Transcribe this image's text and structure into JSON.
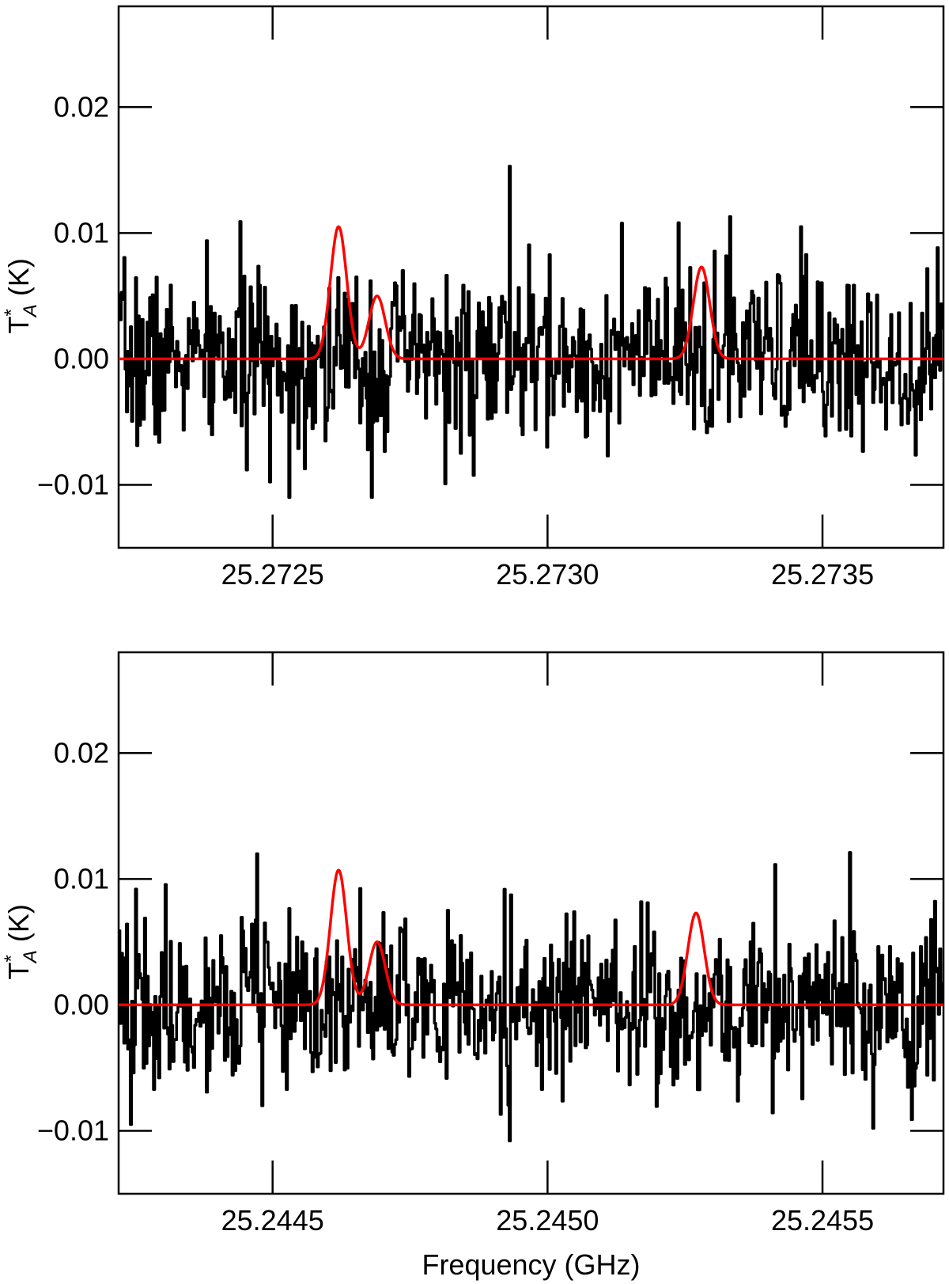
{
  "chart_data": [
    {
      "type": "line",
      "xlim": [
        25.27222,
        25.27372
      ],
      "ylim": [
        -0.015,
        0.028
      ],
      "x_ticks": [
        25.2725,
        25.273,
        25.2735
      ],
      "x_tick_labels": [
        "25.2725",
        "25.2730",
        "25.2735"
      ],
      "y_ticks": [
        -0.01,
        0.0,
        0.01,
        0.02
      ],
      "y_tick_labels": [
        "−0.01",
        "0.00",
        "0.01",
        "0.02"
      ],
      "ylabel": "T*A (K)",
      "xlabel": "",
      "series": [
        {
          "role": "observed spectrum",
          "color": "#000000",
          "noise_rms": 0.0035,
          "seed": 7,
          "spikes": [
            [
              25.27293,
              0.0153
            ],
            [
              25.27284,
              -0.0075
            ],
            [
              25.27253,
              -0.011
            ],
            [
              25.27268,
              -0.011
            ],
            [
              25.27333,
              0.0113
            ],
            [
              25.27346,
              0.0105
            ]
          ]
        },
        {
          "role": "model fit",
          "color": "#ff0000",
          "components": [
            {
              "center": 25.27262,
              "amplitude": 0.0105,
              "fwhm": 3.5e-05
            },
            {
              "center": 25.27269,
              "amplitude": 0.005,
              "fwhm": 3.5e-05
            },
            {
              "center": 25.27328,
              "amplitude": 0.0073,
              "fwhm": 3.5e-05
            }
          ]
        }
      ]
    },
    {
      "type": "line",
      "xlim": [
        25.24422,
        25.24572
      ],
      "ylim": [
        -0.015,
        0.028
      ],
      "x_ticks": [
        25.2445,
        25.245,
        25.2455
      ],
      "x_tick_labels": [
        "25.2445",
        "25.2450",
        "25.2455"
      ],
      "y_ticks": [
        -0.01,
        0.0,
        0.01,
        0.02
      ],
      "y_tick_labels": [
        "−0.01",
        "0.00",
        "0.01",
        "0.02"
      ],
      "ylabel": "T*A (K)",
      "xlabel": "Frequency (GHz)",
      "series": [
        {
          "role": "observed spectrum",
          "color": "#000000",
          "noise_rms": 0.0035,
          "seed": 19,
          "spikes": [
            [
              25.24425,
              0.0092
            ],
            [
              25.24424,
              -0.0095
            ],
            [
              25.24447,
              0.012
            ],
            [
              25.24448,
              -0.008
            ],
            [
              25.24493,
              -0.0108
            ],
            [
              25.24555,
              0.0121
            ],
            [
              25.24559,
              -0.0098
            ]
          ]
        },
        {
          "role": "model fit",
          "color": "#ff0000",
          "components": [
            {
              "center": 25.24462,
              "amplitude": 0.0107,
              "fwhm": 3.5e-05
            },
            {
              "center": 25.24469,
              "amplitude": 0.005,
              "fwhm": 3.5e-05
            },
            {
              "center": 25.24527,
              "amplitude": 0.0073,
              "fwhm": 3.5e-05
            }
          ]
        }
      ]
    }
  ]
}
